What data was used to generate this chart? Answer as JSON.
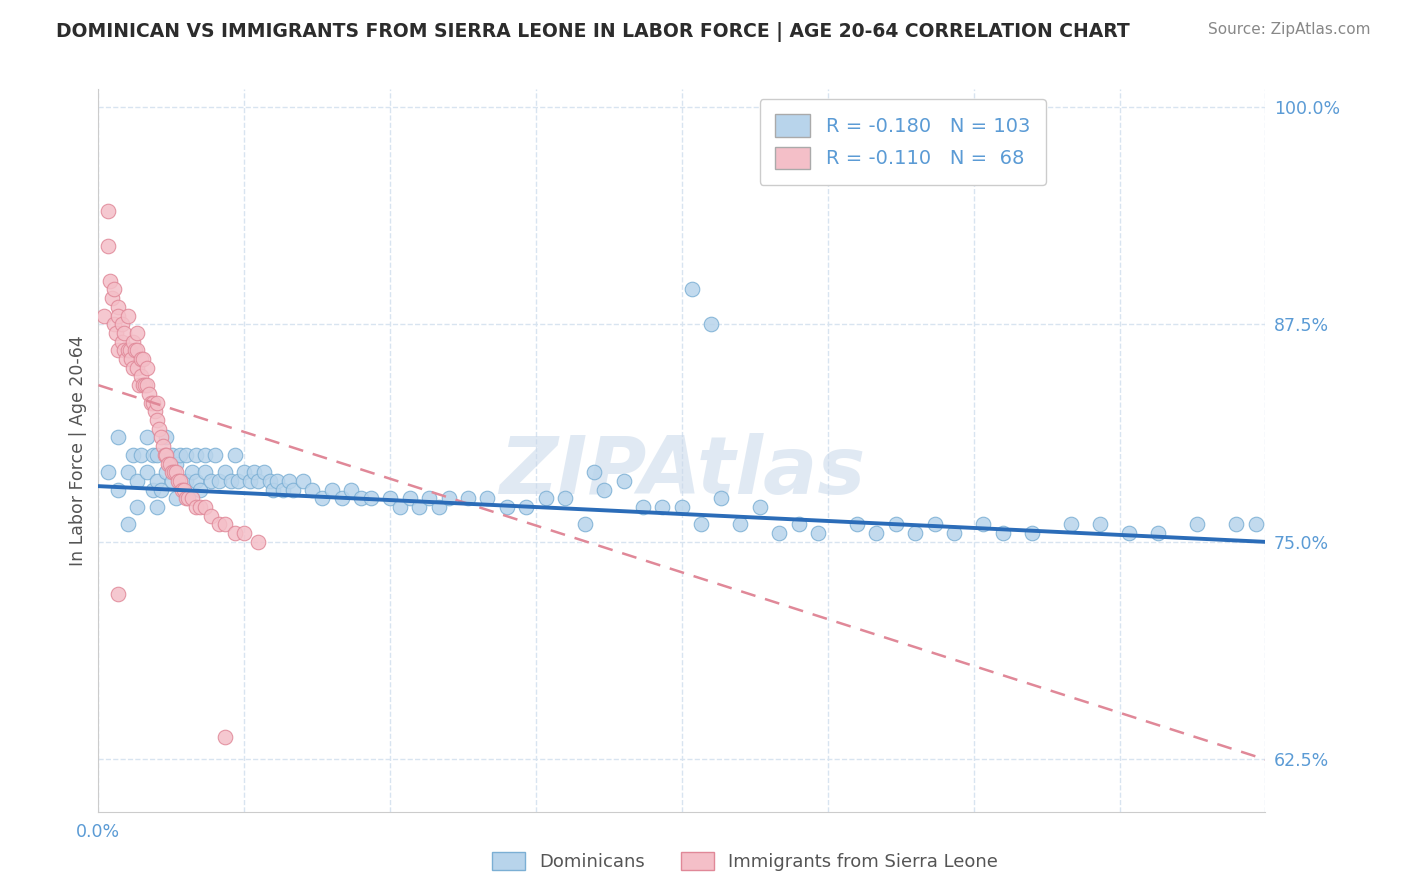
{
  "title": "DOMINICAN VS IMMIGRANTS FROM SIERRA LEONE IN LABOR FORCE | AGE 20-64 CORRELATION CHART",
  "source": "Source: ZipAtlas.com",
  "ylabel": "In Labor Force | Age 20-64",
  "xmin": 0.0,
  "xmax": 0.6,
  "ymin": 0.595,
  "ymax": 1.01,
  "yticks": [
    0.625,
    0.75,
    0.875,
    1.0
  ],
  "ytick_labels": [
    "62.5%",
    "75.0%",
    "87.5%",
    "100.0%"
  ],
  "xticks": [
    0.0,
    0.075,
    0.15,
    0.225,
    0.3,
    0.375,
    0.45,
    0.525,
    0.6
  ],
  "blue_R": -0.18,
  "blue_N": 103,
  "pink_R": -0.11,
  "pink_N": 68,
  "blue_color": "#b8d4eb",
  "blue_edge": "#7bafd4",
  "pink_color": "#f4bfc8",
  "pink_edge": "#e08898",
  "blue_line_color": "#2b6cb8",
  "pink_line_color": "#e08898",
  "grid_color": "#d8e4f0",
  "watermark": "ZIPAtlas",
  "legend_blue_label": "Dominicans",
  "legend_pink_label": "Immigrants from Sierra Leone",
  "blue_scatter_x": [
    0.005,
    0.01,
    0.01,
    0.015,
    0.015,
    0.018,
    0.02,
    0.02,
    0.022,
    0.025,
    0.025,
    0.028,
    0.028,
    0.03,
    0.03,
    0.03,
    0.032,
    0.035,
    0.035,
    0.038,
    0.038,
    0.04,
    0.04,
    0.042,
    0.045,
    0.045,
    0.048,
    0.05,
    0.05,
    0.052,
    0.055,
    0.055,
    0.058,
    0.06,
    0.062,
    0.065,
    0.068,
    0.07,
    0.072,
    0.075,
    0.078,
    0.08,
    0.082,
    0.085,
    0.088,
    0.09,
    0.092,
    0.095,
    0.098,
    0.1,
    0.105,
    0.11,
    0.115,
    0.12,
    0.125,
    0.13,
    0.135,
    0.14,
    0.15,
    0.155,
    0.16,
    0.165,
    0.17,
    0.175,
    0.18,
    0.19,
    0.2,
    0.21,
    0.22,
    0.23,
    0.24,
    0.25,
    0.255,
    0.26,
    0.27,
    0.28,
    0.29,
    0.3,
    0.31,
    0.32,
    0.33,
    0.34,
    0.35,
    0.36,
    0.37,
    0.39,
    0.4,
    0.41,
    0.42,
    0.43,
    0.44,
    0.455,
    0.465,
    0.48,
    0.5,
    0.515,
    0.53,
    0.545,
    0.565,
    0.585,
    0.305,
    0.315,
    0.595
  ],
  "blue_scatter_y": [
    0.79,
    0.78,
    0.81,
    0.79,
    0.76,
    0.8,
    0.785,
    0.77,
    0.8,
    0.79,
    0.81,
    0.78,
    0.8,
    0.785,
    0.77,
    0.8,
    0.78,
    0.79,
    0.81,
    0.785,
    0.8,
    0.775,
    0.795,
    0.8,
    0.785,
    0.8,
    0.79,
    0.785,
    0.8,
    0.78,
    0.79,
    0.8,
    0.785,
    0.8,
    0.785,
    0.79,
    0.785,
    0.8,
    0.785,
    0.79,
    0.785,
    0.79,
    0.785,
    0.79,
    0.785,
    0.78,
    0.785,
    0.78,
    0.785,
    0.78,
    0.785,
    0.78,
    0.775,
    0.78,
    0.775,
    0.78,
    0.775,
    0.775,
    0.775,
    0.77,
    0.775,
    0.77,
    0.775,
    0.77,
    0.775,
    0.775,
    0.775,
    0.77,
    0.77,
    0.775,
    0.775,
    0.76,
    0.79,
    0.78,
    0.785,
    0.77,
    0.77,
    0.77,
    0.76,
    0.775,
    0.76,
    0.77,
    0.755,
    0.76,
    0.755,
    0.76,
    0.755,
    0.76,
    0.755,
    0.76,
    0.755,
    0.76,
    0.755,
    0.755,
    0.76,
    0.76,
    0.755,
    0.755,
    0.76,
    0.76,
    0.895,
    0.875,
    0.76
  ],
  "pink_scatter_x": [
    0.003,
    0.005,
    0.005,
    0.006,
    0.007,
    0.008,
    0.008,
    0.009,
    0.01,
    0.01,
    0.01,
    0.012,
    0.012,
    0.013,
    0.013,
    0.014,
    0.015,
    0.015,
    0.016,
    0.017,
    0.018,
    0.018,
    0.019,
    0.02,
    0.02,
    0.02,
    0.021,
    0.022,
    0.022,
    0.023,
    0.023,
    0.024,
    0.025,
    0.025,
    0.026,
    0.027,
    0.028,
    0.029,
    0.03,
    0.03,
    0.031,
    0.032,
    0.033,
    0.034,
    0.035,
    0.036,
    0.037,
    0.038,
    0.039,
    0.04,
    0.041,
    0.042,
    0.043,
    0.044,
    0.045,
    0.046,
    0.048,
    0.05,
    0.052,
    0.055,
    0.058,
    0.062,
    0.065,
    0.07,
    0.075,
    0.082,
    0.01,
    0.065
  ],
  "pink_scatter_y": [
    0.88,
    0.94,
    0.92,
    0.9,
    0.89,
    0.875,
    0.895,
    0.87,
    0.885,
    0.86,
    0.88,
    0.865,
    0.875,
    0.86,
    0.87,
    0.855,
    0.86,
    0.88,
    0.86,
    0.855,
    0.85,
    0.865,
    0.86,
    0.85,
    0.86,
    0.87,
    0.84,
    0.845,
    0.855,
    0.84,
    0.855,
    0.84,
    0.84,
    0.85,
    0.835,
    0.83,
    0.83,
    0.825,
    0.82,
    0.83,
    0.815,
    0.81,
    0.805,
    0.8,
    0.8,
    0.795,
    0.795,
    0.79,
    0.79,
    0.79,
    0.785,
    0.785,
    0.78,
    0.78,
    0.775,
    0.775,
    0.775,
    0.77,
    0.77,
    0.77,
    0.765,
    0.76,
    0.76,
    0.755,
    0.755,
    0.75,
    0.72,
    0.638
  ]
}
